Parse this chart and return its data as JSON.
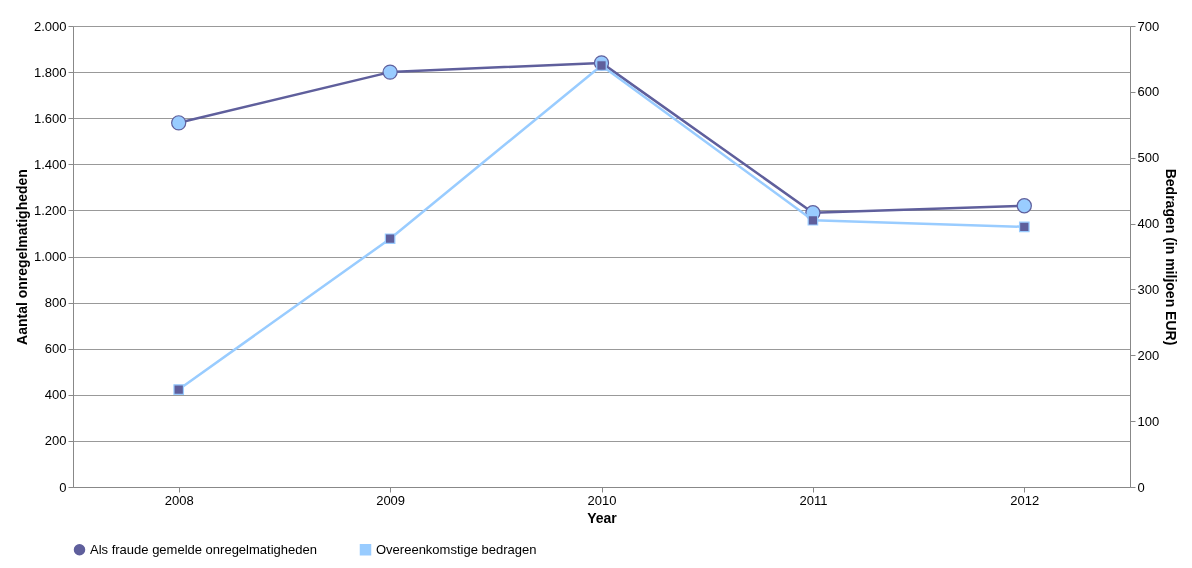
{
  "chart_data": {
    "type": "line",
    "xlabel": "Year",
    "ylabel": "Aantal onregelmatigheden",
    "y2label": "Bedragen (in miljoen EUR)",
    "categories": [
      "2008",
      "2009",
      "2010",
      "2011",
      "2012"
    ],
    "series": [
      {
        "name": "Als fraude gemelde onregelmatigheden",
        "color": "#5f5f9c",
        "marker": "circle",
        "values": [
          1580,
          1800,
          1840,
          1190,
          1220
        ]
      },
      {
        "name": "Overeenkomstige bedragen",
        "color": "#99ccff",
        "marker": "square",
        "axis": "y2",
        "values": [
          148,
          377,
          640,
          405,
          395
        ]
      }
    ],
    "ylim": [
      0,
      2000
    ],
    "yticks": [
      0,
      200,
      400,
      600,
      800,
      {
        "value": 1000,
        "label": "1.000"
      },
      {
        "value": 1200,
        "label": "1.200"
      },
      {
        "value": 1400,
        "label": "1.400"
      },
      {
        "value": 1600,
        "label": "1.600"
      },
      {
        "value": 1800,
        "label": "1.800"
      },
      {
        "value": 2000,
        "label": "2.000"
      }
    ],
    "y2lim": [
      0,
      700
    ],
    "y2ticks": [
      0,
      100,
      200,
      300,
      400,
      500,
      600,
      700
    ],
    "grid": "y",
    "legend": "bottom",
    "line_style": "solid"
  }
}
